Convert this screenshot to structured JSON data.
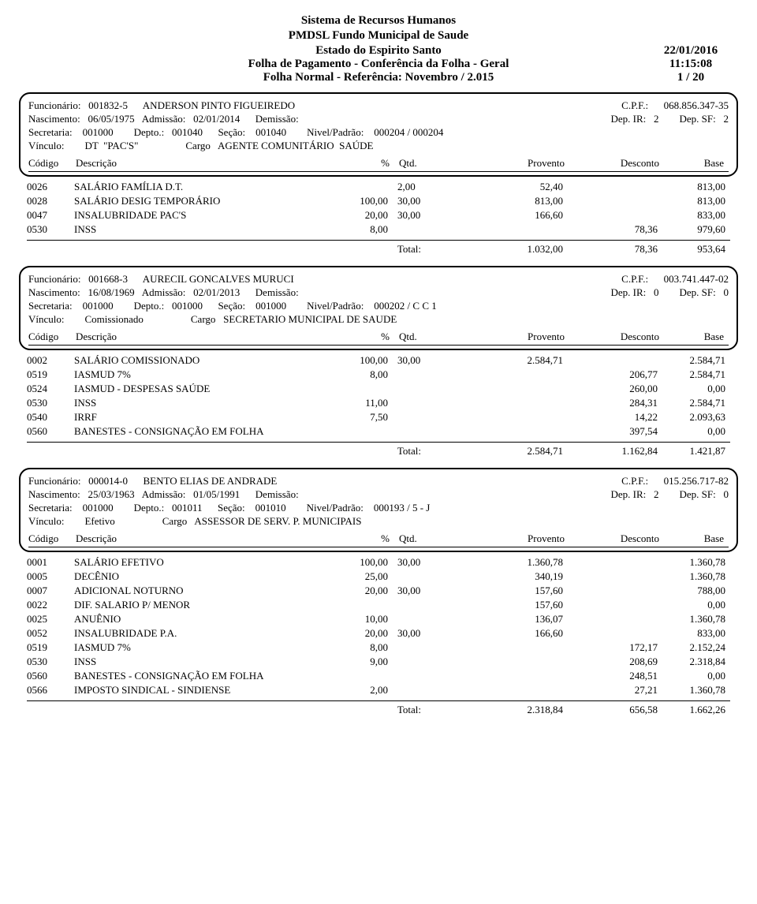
{
  "header": {
    "title1": "Sistema de Recursos Humanos",
    "title2": "PMDSL Fundo Municipal de Saude",
    "title3": "Estado do Espirito Santo",
    "date": "22/01/2016",
    "title4": "Folha de Pagamento - Conferência da Folha - Geral",
    "time": "11:15:08",
    "title5": "Folha Normal   -   Referência: Novembro / 2.015",
    "page": "1 / 20"
  },
  "cols": {
    "code": "Código",
    "desc": "Descrição",
    "pct": "%",
    "qtd": "Qtd.",
    "prov": "Provento",
    "desc2": "Desconto",
    "base": "Base"
  },
  "labels": {
    "funcionario": "Funcionário:",
    "cpf": "C.P.F.:",
    "nascimento": "Nascimento:",
    "admissao": "Admissão:",
    "demissao": "Demissão:",
    "depir": "Dep. IR:",
    "depsf": "Dep. SF:",
    "secretaria": "Secretaria:",
    "depto": "Depto.:",
    "secao": "Seção:",
    "nivel": "Nivel/Padrão:",
    "vinculo": "Vínculo:",
    "cargo": "Cargo",
    "total": "Total:"
  },
  "employees": [
    {
      "func_id": "001832-5",
      "name": "ANDERSON PINTO FIGUEIREDO",
      "cpf": "068.856.347-35",
      "nasc": "06/05/1975",
      "adm": "02/01/2014",
      "dem": "",
      "dep_ir": "2",
      "dep_sf": "2",
      "secretaria": "001000",
      "depto": "001040",
      "secao": "001040",
      "nivel": "000204 / 000204",
      "vinculo": "DT  \"PAC'S\"",
      "cargo": "AGENTE COMUNITÁRIO  SAÚDE",
      "lines": [
        {
          "code": "0026",
          "desc": "SALÁRIO FAMÍLIA D.T.",
          "pct": "",
          "qtd": "2,00",
          "prov": "52,40",
          "desc2": "",
          "base": "813,00"
        },
        {
          "code": "0028",
          "desc": "SALÁRIO DESIG TEMPORÁRIO",
          "pct": "100,00",
          "qtd": "30,00",
          "prov": "813,00",
          "desc2": "",
          "base": "813,00"
        },
        {
          "code": "0047",
          "desc": "INSALUBRIDADE PAC'S",
          "pct": "20,00",
          "qtd": "30,00",
          "prov": "166,60",
          "desc2": "",
          "base": "833,00"
        },
        {
          "code": "0530",
          "desc": "INSS",
          "pct": "8,00",
          "qtd": "",
          "prov": "",
          "desc2": "78,36",
          "base": "979,60"
        }
      ],
      "total": {
        "prov": "1.032,00",
        "desc": "78,36",
        "net": "953,64"
      }
    },
    {
      "func_id": "001668-3",
      "name": "AURECIL GONCALVES MURUCI",
      "cpf": "003.741.447-02",
      "nasc": "16/08/1969",
      "adm": "02/01/2013",
      "dem": "",
      "dep_ir": "0",
      "dep_sf": "0",
      "secretaria": "001000",
      "depto": "001000",
      "secao": "001000",
      "nivel": "000202 / C C 1",
      "vinculo": "Comissionado",
      "cargo": "SECRETARIO MUNICIPAL DE SAUDE",
      "lines": [
        {
          "code": "0002",
          "desc": "SALÁRIO COMISSIONADO",
          "pct": "100,00",
          "qtd": "30,00",
          "prov": "2.584,71",
          "desc2": "",
          "base": "2.584,71"
        },
        {
          "code": "0519",
          "desc": "IASMUD 7%",
          "pct": "8,00",
          "qtd": "",
          "prov": "",
          "desc2": "206,77",
          "base": "2.584,71"
        },
        {
          "code": "0524",
          "desc": "IASMUD - DESPESAS SAÚDE",
          "pct": "",
          "qtd": "",
          "prov": "",
          "desc2": "260,00",
          "base": "0,00"
        },
        {
          "code": "0530",
          "desc": "INSS",
          "pct": "11,00",
          "qtd": "",
          "prov": "",
          "desc2": "284,31",
          "base": "2.584,71"
        },
        {
          "code": "0540",
          "desc": "IRRF",
          "pct": "7,50",
          "qtd": "",
          "prov": "",
          "desc2": "14,22",
          "base": "2.093,63"
        },
        {
          "code": "0560",
          "desc": "BANESTES - CONSIGNAÇÃO EM FOLHA",
          "pct": "",
          "qtd": "",
          "prov": "",
          "desc2": "397,54",
          "base": "0,00"
        }
      ],
      "total": {
        "prov": "2.584,71",
        "desc": "1.162,84",
        "net": "1.421,87"
      }
    },
    {
      "func_id": "000014-0",
      "name": "BENTO ELIAS DE ANDRADE",
      "cpf": "015.256.717-82",
      "nasc": "25/03/1963",
      "adm": "01/05/1991",
      "dem": "",
      "dep_ir": "2",
      "dep_sf": "0",
      "secretaria": "001000",
      "depto": "001011",
      "secao": "001010",
      "nivel": "000193 / 5 - J",
      "vinculo": "Efetivo",
      "cargo": "ASSESSOR DE SERV. P. MUNICIPAIS",
      "lines": [
        {
          "code": "0001",
          "desc": "SALÁRIO EFETIVO",
          "pct": "100,00",
          "qtd": "30,00",
          "prov": "1.360,78",
          "desc2": "",
          "base": "1.360,78"
        },
        {
          "code": "0005",
          "desc": "DECÊNIO",
          "pct": "25,00",
          "qtd": "",
          "prov": "340,19",
          "desc2": "",
          "base": "1.360,78"
        },
        {
          "code": "0007",
          "desc": "ADICIONAL NOTURNO",
          "pct": "20,00",
          "qtd": "30,00",
          "prov": "157,60",
          "desc2": "",
          "base": "788,00"
        },
        {
          "code": "0022",
          "desc": "DIF. SALARIO P/ MENOR",
          "pct": "",
          "qtd": "",
          "prov": "157,60",
          "desc2": "",
          "base": "0,00"
        },
        {
          "code": "0025",
          "desc": "ANUÊNIO",
          "pct": "10,00",
          "qtd": "",
          "prov": "136,07",
          "desc2": "",
          "base": "1.360,78"
        },
        {
          "code": "0052",
          "desc": "INSALUBRIDADE P.A.",
          "pct": "20,00",
          "qtd": "30,00",
          "prov": "166,60",
          "desc2": "",
          "base": "833,00"
        },
        {
          "code": "0519",
          "desc": "IASMUD 7%",
          "pct": "8,00",
          "qtd": "",
          "prov": "",
          "desc2": "172,17",
          "base": "2.152,24"
        },
        {
          "code": "0530",
          "desc": "INSS",
          "pct": "9,00",
          "qtd": "",
          "prov": "",
          "desc2": "208,69",
          "base": "2.318,84"
        },
        {
          "code": "0560",
          "desc": "BANESTES - CONSIGNAÇÃO EM FOLHA",
          "pct": "",
          "qtd": "",
          "prov": "",
          "desc2": "248,51",
          "base": "0,00"
        },
        {
          "code": "0566",
          "desc": "IMPOSTO SINDICAL - SINDIENSE",
          "pct": "2,00",
          "qtd": "",
          "prov": "",
          "desc2": "27,21",
          "base": "1.360,78"
        }
      ],
      "total": {
        "prov": "2.318,84",
        "desc": "656,58",
        "net": "1.662,26"
      }
    }
  ]
}
